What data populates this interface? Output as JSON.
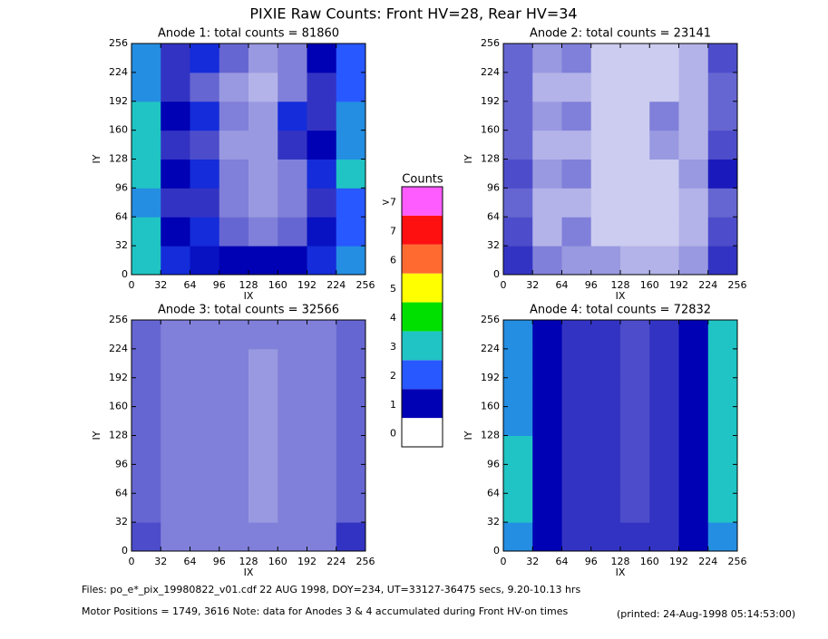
{
  "title": "PIXIE Raw Counts:  Front HV=28, Rear HV=34",
  "chart_data": [
    {
      "type": "heatmap",
      "title": "Anode 1: total counts = 81860",
      "xlabel": "IX",
      "ylabel": "IY",
      "xlim": [
        0,
        256
      ],
      "ylim": [
        0,
        256
      ],
      "xticks": [
        0,
        32,
        64,
        96,
        128,
        160,
        192,
        224,
        256
      ],
      "yticks": [
        0,
        32,
        64,
        96,
        128,
        160,
        192,
        224,
        256
      ],
      "xbins": [
        0,
        32,
        64,
        96,
        128,
        160,
        192,
        224,
        256
      ],
      "ybins": [
        0,
        32,
        64,
        96,
        128,
        160,
        192,
        224,
        256
      ],
      "z": [
        [
          3,
          1.5,
          1.2,
          1.0,
          1.0,
          1.0,
          1.5,
          2.5
        ],
        [
          3,
          1,
          1.5,
          0.6,
          0.5,
          0.6,
          1.2,
          2
        ],
        [
          2.5,
          0.8,
          0.8,
          0.5,
          0.4,
          0.5,
          0.8,
          2
        ],
        [
          3,
          1,
          1.5,
          0.5,
          0.4,
          0.5,
          1.5,
          3
        ],
        [
          3,
          0.8,
          0.7,
          0.4,
          0.4,
          0.8,
          1,
          2.5
        ],
        [
          3,
          1,
          1.5,
          0.5,
          0.4,
          1.5,
          0.8,
          2.5
        ],
        [
          2.5,
          0.8,
          0.6,
          0.4,
          0.3,
          0.5,
          0.8,
          2
        ],
        [
          2.5,
          0.8,
          1.5,
          0.6,
          0.4,
          0.5,
          1,
          2
        ]
      ]
    },
    {
      "type": "heatmap",
      "title": "Anode 2: total counts = 23141",
      "xlabel": "IX",
      "ylabel": "IY",
      "xlim": [
        0,
        256
      ],
      "ylim": [
        0,
        256
      ],
      "xticks": [
        0,
        32,
        64,
        96,
        128,
        160,
        192,
        224,
        256
      ],
      "yticks": [
        0,
        32,
        64,
        96,
        128,
        160,
        192,
        224,
        256
      ],
      "xbins": [
        0,
        32,
        64,
        96,
        128,
        160,
        192,
        224,
        256
      ],
      "ybins": [
        0,
        32,
        64,
        96,
        128,
        160,
        192,
        224,
        256
      ],
      "z": [
        [
          0.8,
          0.5,
          0.4,
          0.4,
          0.3,
          0.3,
          0.4,
          0.8
        ],
        [
          0.7,
          0.3,
          0.5,
          0.2,
          0.2,
          0.2,
          0.3,
          0.7
        ],
        [
          0.6,
          0.3,
          0.3,
          0.2,
          0.2,
          0.2,
          0.3,
          0.6
        ],
        [
          0.7,
          0.4,
          0.5,
          0.2,
          0.2,
          0.2,
          0.4,
          0.9
        ],
        [
          0.6,
          0.3,
          0.3,
          0.2,
          0.2,
          0.4,
          0.3,
          0.7
        ],
        [
          0.6,
          0.4,
          0.5,
          0.2,
          0.2,
          0.5,
          0.3,
          0.6
        ],
        [
          0.6,
          0.3,
          0.3,
          0.2,
          0.2,
          0.2,
          0.3,
          0.6
        ],
        [
          0.6,
          0.4,
          0.5,
          0.2,
          0.2,
          0.2,
          0.3,
          0.7
        ]
      ]
    },
    {
      "type": "heatmap",
      "title": "Anode 3: total counts = 32566",
      "xlabel": "IX",
      "ylabel": "IY",
      "xlim": [
        0,
        256
      ],
      "ylim": [
        0,
        256
      ],
      "xticks": [
        0,
        32,
        64,
        96,
        128,
        160,
        192,
        224,
        256
      ],
      "yticks": [
        0,
        32,
        64,
        96,
        128,
        160,
        192,
        224,
        256
      ],
      "xbins": [
        0,
        32,
        64,
        96,
        128,
        160,
        192,
        224,
        256
      ],
      "ybins": [
        0,
        32,
        64,
        96,
        128,
        160,
        192,
        224,
        256
      ],
      "z": [
        [
          0.7,
          0.5,
          0.5,
          0.5,
          0.5,
          0.5,
          0.5,
          0.8
        ],
        [
          0.6,
          0.5,
          0.5,
          0.5,
          0.4,
          0.5,
          0.5,
          0.6
        ],
        [
          0.6,
          0.5,
          0.5,
          0.5,
          0.4,
          0.5,
          0.5,
          0.6
        ],
        [
          0.6,
          0.5,
          0.5,
          0.5,
          0.4,
          0.5,
          0.5,
          0.6
        ],
        [
          0.6,
          0.5,
          0.5,
          0.5,
          0.4,
          0.5,
          0.5,
          0.6
        ],
        [
          0.6,
          0.5,
          0.5,
          0.5,
          0.4,
          0.5,
          0.5,
          0.6
        ],
        [
          0.6,
          0.5,
          0.5,
          0.5,
          0.4,
          0.5,
          0.5,
          0.6
        ],
        [
          0.6,
          0.5,
          0.5,
          0.5,
          0.5,
          0.5,
          0.5,
          0.6
        ]
      ]
    },
    {
      "type": "heatmap",
      "title": "Anode 4: total counts = 72832",
      "xlabel": "IX",
      "ylabel": "IY",
      "xlim": [
        0,
        256
      ],
      "ylim": [
        0,
        256
      ],
      "xticks": [
        0,
        32,
        64,
        96,
        128,
        160,
        192,
        224,
        256
      ],
      "yticks": [
        0,
        32,
        64,
        96,
        128,
        160,
        192,
        224,
        256
      ],
      "xbins": [
        0,
        32,
        64,
        96,
        128,
        160,
        192,
        224,
        256
      ],
      "ybins": [
        0,
        32,
        64,
        96,
        128,
        160,
        192,
        224,
        256
      ],
      "z": [
        [
          2.5,
          1,
          0.8,
          0.8,
          0.8,
          0.8,
          1,
          2.5
        ],
        [
          3,
          1,
          0.8,
          0.8,
          0.7,
          0.8,
          1,
          3
        ],
        [
          3,
          1,
          0.8,
          0.8,
          0.7,
          0.8,
          1,
          3
        ],
        [
          3,
          1,
          0.8,
          0.8,
          0.7,
          0.8,
          1,
          3
        ],
        [
          2.5,
          1,
          0.8,
          0.8,
          0.7,
          0.8,
          1,
          3
        ],
        [
          2.5,
          1,
          0.8,
          0.8,
          0.7,
          0.8,
          1,
          3
        ],
        [
          2.5,
          1,
          0.8,
          0.8,
          0.7,
          0.8,
          1,
          3
        ],
        [
          2.5,
          1,
          0.8,
          0.8,
          0.7,
          0.8,
          1,
          3
        ]
      ]
    }
  ],
  "colorbar": {
    "title": "Counts",
    "ticks": [
      0,
      1,
      2,
      3,
      4,
      5,
      6,
      7,
      {
        "value": 8,
        "label": ">7"
      }
    ],
    "colors": [
      "#ffffff",
      "#0000b4",
      "#2858ff",
      "#20c4c4",
      "#00e000",
      "#ffff00",
      "#ff6a30",
      "#ff1010",
      "#ff5cff"
    ]
  },
  "footer": [
    "Files: po_e*_pix_19980822_v01.cdf    22 AUG 1998, DOY=234, UT=33127-36475 secs,  9.20-10.13 hrs",
    "Motor Positions = 1749, 3616   Note: data for Anodes 3 & 4 accumulated during Front HV-on times",
    "(printed: 24-Aug-1998 05:14:53:00)"
  ]
}
